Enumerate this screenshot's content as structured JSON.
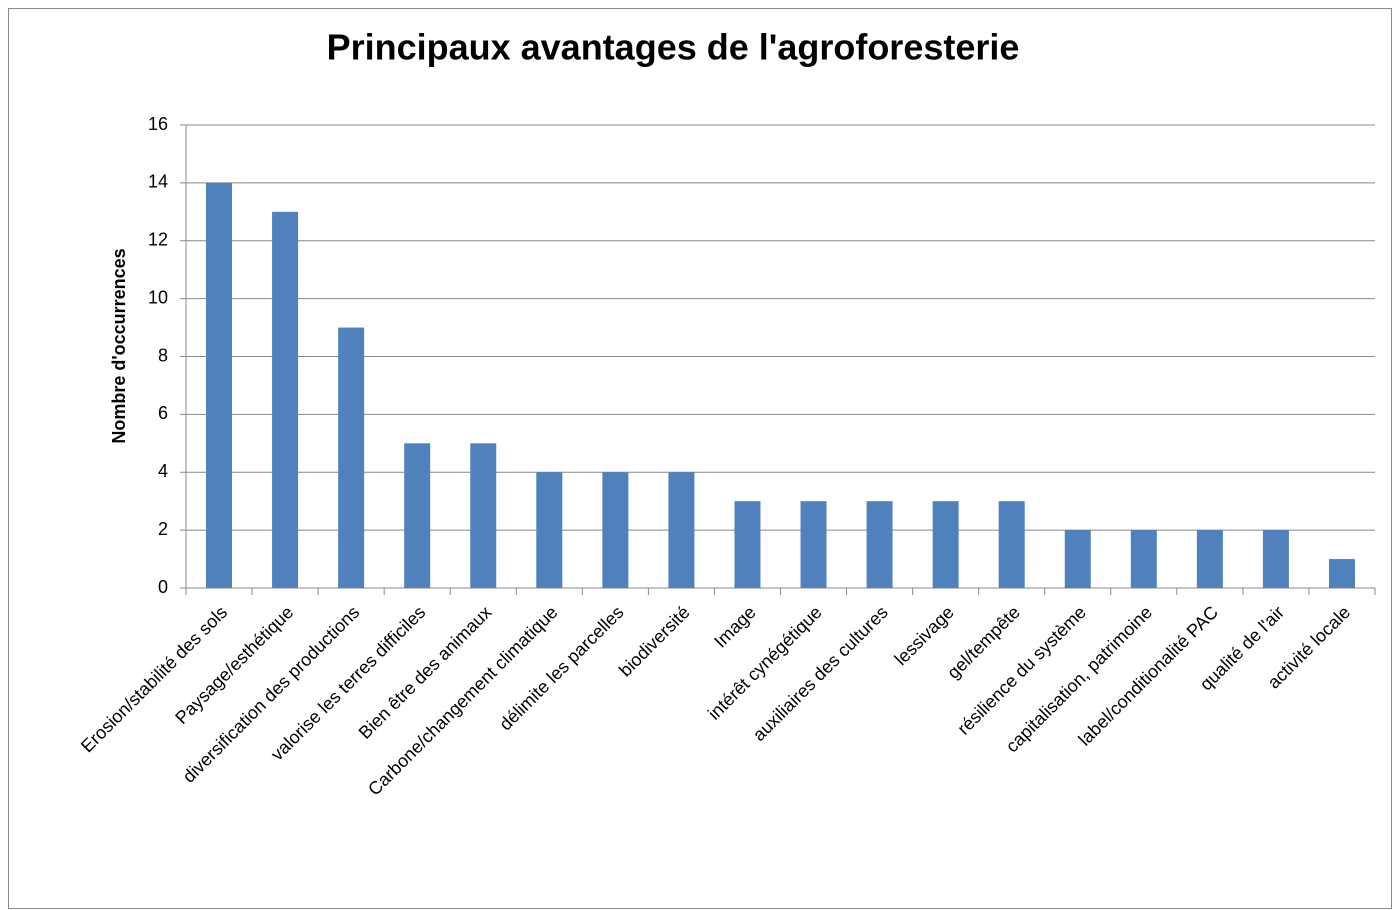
{
  "chart_data": {
    "type": "bar",
    "title": "Principaux avantages de l'agroforesterie",
    "y_label": "Nombre d'occurrences",
    "categories": [
      "Erosion/stabilité des sols",
      "Paysage/esthétique",
      "diversification des productions",
      "valorise les terres difficiles",
      "Bien être des animaux",
      "Carbone/changement climatique",
      "délimite les parcelles",
      "biodiversité",
      "Image",
      "intérêt cynégétique",
      "auxiliaires des cultures",
      "lessivage",
      "gel/tempête",
      "résilience du système",
      "capitalisation, patrimoine",
      "label/conditionalité PAC",
      "qualité de l'air",
      "activité locale"
    ],
    "values": [
      14,
      13,
      9,
      5,
      5,
      4,
      4,
      4,
      3,
      3,
      3,
      3,
      3,
      2,
      2,
      2,
      2,
      1
    ],
    "color": "#4f81bd",
    "ylim": [
      0,
      16
    ],
    "yticks": [
      0,
      2,
      4,
      6,
      8,
      10,
      12,
      14,
      16
    ],
    "grid": true
  }
}
